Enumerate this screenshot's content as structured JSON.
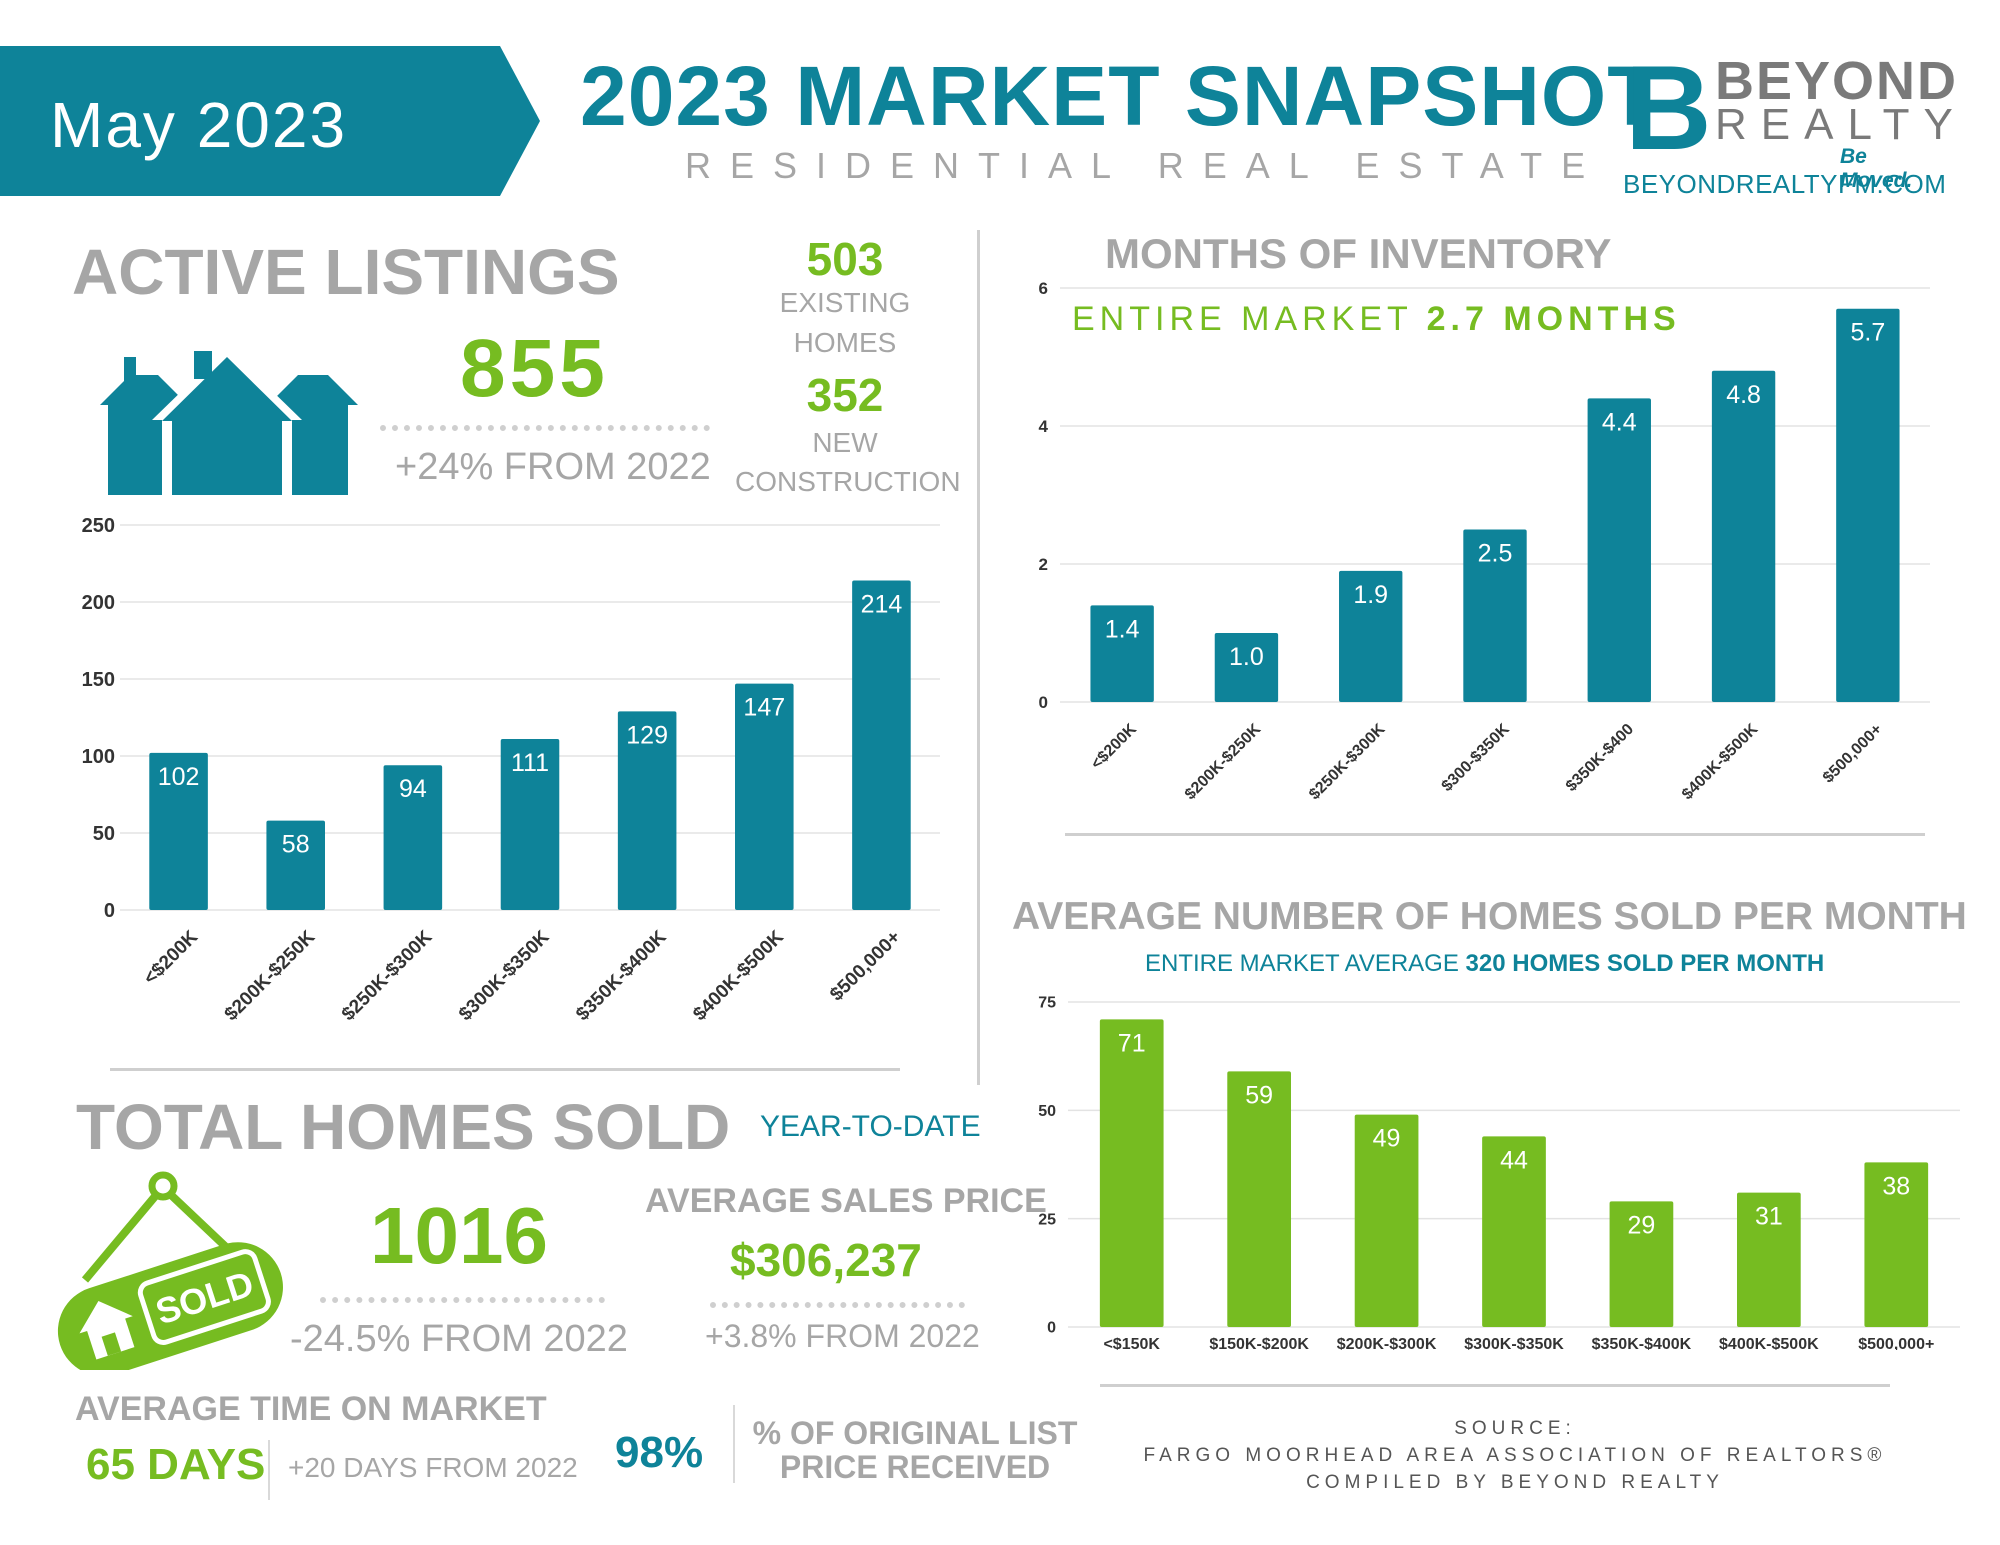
{
  "header": {
    "month": "May 2023",
    "title": "2023 MARKET SNAPSHOT",
    "subtitle": "RESIDENTIAL REAL ESTATE"
  },
  "logo": {
    "mark": "B",
    "line1": "BEYOND",
    "line2": "REALTY",
    "tagline": "Be Moved.",
    "url": "BEYONDREALTYFM.COM"
  },
  "active_listings": {
    "title": "ACTIVE LISTINGS",
    "total": "855",
    "change": "+24% FROM 2022",
    "existing_value": "503",
    "existing_label1": "EXISTING",
    "existing_label2": "HOMES",
    "new_value": "352",
    "new_label1": "NEW",
    "new_label2": "CONSTRUCTION",
    "icon": "houses-icon"
  },
  "months_inventory": {
    "title": "MONTHS OF INVENTORY",
    "market_label": "ENTIRE MARKET",
    "market_value": "2.7 MONTHS"
  },
  "homes_sold_month": {
    "title": "AVERAGE NUMBER OF HOMES SOLD PER MONTH",
    "market_label": "ENTIRE MARKET AVERAGE",
    "market_value": "320 HOMES SOLD PER MONTH"
  },
  "total_sold": {
    "title": "TOTAL HOMES SOLD",
    "ytd": "YEAR-TO-DATE",
    "value": "1016",
    "change": "-24.5% FROM 2022",
    "sign_text": "SOLD",
    "icon": "sold-sign-icon"
  },
  "avg_price": {
    "title": "AVERAGE SALES PRICE",
    "value": "$306,237",
    "change": "+3.8% FROM 2022"
  },
  "time_on_market": {
    "title": "AVERAGE TIME ON MARKET",
    "value": "65 DAYS",
    "change": "+20 DAYS FROM 2022"
  },
  "list_price": {
    "value": "98%",
    "label1": "% OF ORIGINAL LIST",
    "label2": "PRICE RECEIVED"
  },
  "source": {
    "line1": "SOURCE:",
    "line2": "FARGO MOORHEAD AREA ASSOCIATION OF REALTORS®",
    "line3": "COMPILED BY BEYOND REALTY"
  },
  "colors": {
    "teal": "#0e8399",
    "green": "#76bc21",
    "grey": "#a6a6a6"
  },
  "chart_data": [
    {
      "id": "active",
      "type": "bar",
      "categories": [
        "<$200K",
        "$200K-$250K",
        "$250K-$300K",
        "$300K-$350K",
        "$350K-$400K",
        "$400K-$500K",
        "$500,000+"
      ],
      "values": [
        102,
        58,
        94,
        111,
        129,
        147,
        214
      ],
      "ylim": [
        0,
        250
      ],
      "yticks": [
        0,
        50,
        100,
        150,
        200,
        250
      ],
      "grid": true,
      "color": "#0e8399"
    },
    {
      "id": "inventory",
      "type": "bar",
      "categories": [
        "<$200K",
        "$200K-$250K",
        "$250K-$300K",
        "$300-$350K",
        "$350K-$400",
        "$400K-$500K",
        "$500,000+"
      ],
      "values": [
        1.4,
        1.0,
        1.9,
        2.5,
        4.4,
        4.8,
        5.7
      ],
      "labels": [
        "1.4",
        "1.0",
        "1.9",
        "2.5",
        "4.4",
        "4.8",
        "5.7"
      ],
      "ylim": [
        0,
        6
      ],
      "yticks": [
        0,
        2,
        4,
        6
      ],
      "grid": true,
      "color": "#0e8399"
    },
    {
      "id": "sold",
      "type": "bar",
      "categories": [
        "<$150K",
        "$150K-$200K",
        "$200K-$300K",
        "$300K-$350K",
        "$350K-$400K",
        "$400K-$500K",
        "$500,000+"
      ],
      "values": [
        71,
        59,
        49,
        44,
        29,
        31,
        38
      ],
      "ylim": [
        0,
        75
      ],
      "yticks": [
        0,
        25,
        50,
        75
      ],
      "grid": true,
      "color": "#76bc21"
    }
  ]
}
